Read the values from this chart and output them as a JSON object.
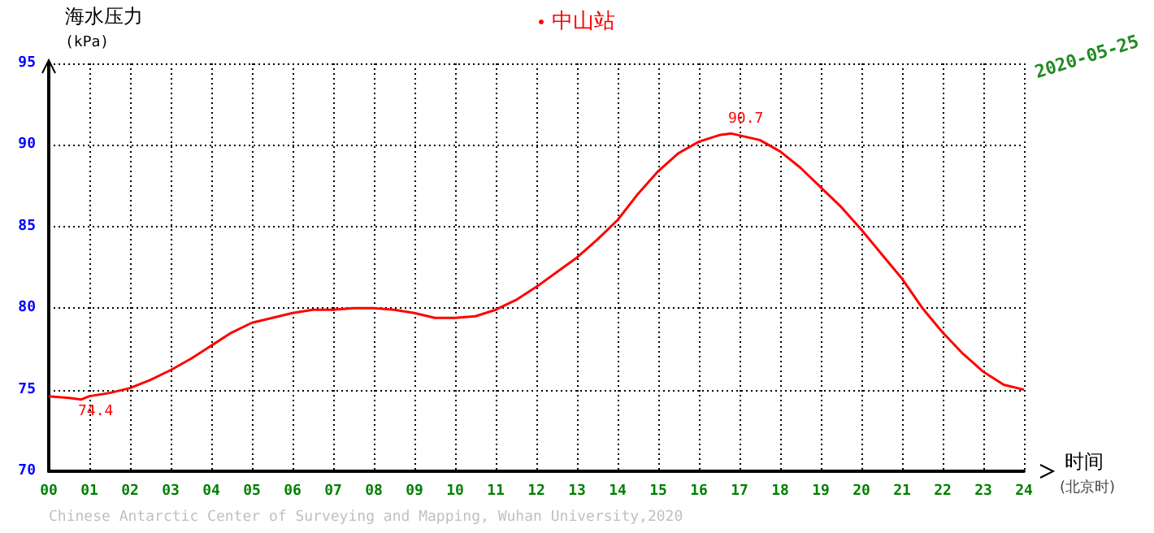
{
  "chart_data": {
    "type": "line",
    "title": null,
    "xlabel": "时间 (北京时)",
    "ylabel": "海水压力 (kPa)",
    "x": [
      0,
      0.5,
      0.8,
      1,
      1.5,
      2,
      2.5,
      3,
      3.5,
      4,
      4.5,
      5,
      5.5,
      6,
      6.5,
      7,
      7.5,
      8,
      8.5,
      9,
      9.5,
      10,
      10.5,
      11,
      11.5,
      12,
      12.5,
      13,
      13.5,
      14,
      14.5,
      15,
      15.5,
      16,
      16.5,
      16.8,
      17.5,
      18,
      18.5,
      19,
      19.5,
      20,
      20.5,
      21,
      21.5,
      22,
      22.5,
      23,
      23.5,
      24
    ],
    "series": [
      {
        "name": "中山站",
        "color": "#ff0000",
        "values": [
          74.6,
          74.5,
          74.4,
          74.6,
          74.8,
          75.1,
          75.6,
          76.2,
          76.9,
          77.7,
          78.5,
          79.1,
          79.4,
          79.7,
          79.9,
          79.9,
          80.0,
          80.0,
          79.9,
          79.7,
          79.4,
          79.4,
          79.5,
          79.9,
          80.5,
          81.3,
          82.2,
          83.1,
          84.2,
          85.4,
          87.0,
          88.4,
          89.5,
          90.2,
          90.6,
          90.7,
          90.3,
          89.6,
          88.6,
          87.4,
          86.2,
          84.8,
          83.3,
          81.8,
          80.0,
          78.5,
          77.2,
          76.1,
          75.3,
          75.0
        ]
      }
    ],
    "xlim": [
      0,
      24
    ],
    "ylim": [
      70,
      95
    ],
    "xticks": [
      {
        "value": 0,
        "label": "00"
      },
      {
        "value": 1,
        "label": "01"
      },
      {
        "value": 2,
        "label": "02"
      },
      {
        "value": 3,
        "label": "03"
      },
      {
        "value": 4,
        "label": "04"
      },
      {
        "value": 5,
        "label": "05"
      },
      {
        "value": 6,
        "label": "06"
      },
      {
        "value": 7,
        "label": "07"
      },
      {
        "value": 8,
        "label": "08"
      },
      {
        "value": 9,
        "label": "09"
      },
      {
        "value": 10,
        "label": "10"
      },
      {
        "value": 11,
        "label": "11"
      },
      {
        "value": 12,
        "label": "12"
      },
      {
        "value": 13,
        "label": "13"
      },
      {
        "value": 14,
        "label": "14"
      },
      {
        "value": 15,
        "label": "15"
      },
      {
        "value": 16,
        "label": "16"
      },
      {
        "value": 17,
        "label": "17"
      },
      {
        "value": 18,
        "label": "18"
      },
      {
        "value": 19,
        "label": "19"
      },
      {
        "value": 20,
        "label": "20"
      },
      {
        "value": 21,
        "label": "21"
      },
      {
        "value": 22,
        "label": "22"
      },
      {
        "value": 23,
        "label": "23"
      },
      {
        "value": 24,
        "label": "24"
      }
    ],
    "yticks": [
      70,
      75,
      80,
      85,
      90,
      95
    ],
    "annotations": [
      {
        "text": "90.7",
        "x": 16.8,
        "y": 90.7
      },
      {
        "text": "74.4",
        "x": 0.8,
        "y": 74.4
      },
      "2020-05-25",
      "Chinese Antarctic Center of Surveying and Mapping, Wuhan University,2020"
    ],
    "grid": true,
    "legend": "top",
    "marker": "none",
    "line_style": "solid"
  }
}
